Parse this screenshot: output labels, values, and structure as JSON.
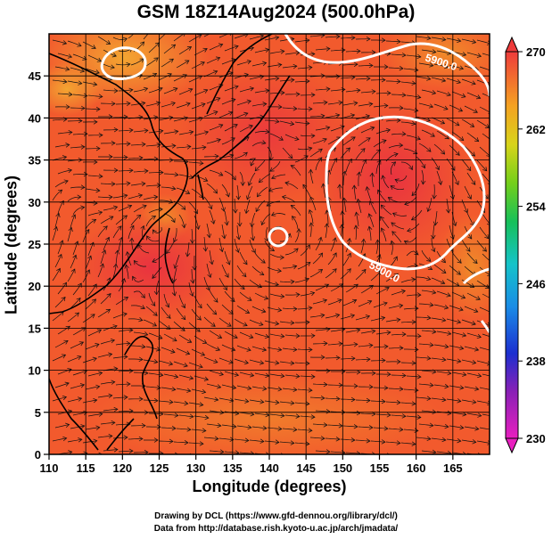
{
  "title": "GSM 18Z14Aug2024 (500.0hPa)",
  "x_axis": {
    "label": "Longitude (degrees)",
    "range": [
      110,
      170
    ],
    "ticks": [
      "110",
      "115",
      "120",
      "125",
      "130",
      "135",
      "140",
      "145",
      "150",
      "155",
      "160",
      "165"
    ],
    "tick_values": [
      110,
      115,
      120,
      125,
      130,
      135,
      140,
      145,
      150,
      155,
      160,
      165
    ]
  },
  "y_axis": {
    "label": "Latitude  (degrees)",
    "range": [
      0,
      50
    ],
    "ticks": [
      "0",
      "5",
      "10",
      "15",
      "20",
      "25",
      "30",
      "35",
      "40",
      "45"
    ],
    "tick_values": [
      0,
      5,
      10,
      15,
      20,
      25,
      30,
      35,
      40,
      45
    ]
  },
  "colorbar": {
    "range": [
      230,
      270
    ],
    "ticks": [
      "230",
      "238",
      "246",
      "254",
      "262",
      "270"
    ],
    "tick_values": [
      230,
      238,
      246,
      254,
      262,
      270
    ]
  },
  "contour_labels": [
    "5900.0",
    "5900.0"
  ],
  "credits": {
    "line1": "Drawing by DCL (https://www.gfd-dennou.org/library/dcl/)",
    "line2": "Data from http://database.rish.kyoto-u.ac.jp/arch/jmadata/"
  },
  "colors": {
    "field_base": "#f25a2d",
    "field_warm": "#f07a26",
    "field_cool": "#ee3d3f",
    "contour": "#ffffff"
  }
}
